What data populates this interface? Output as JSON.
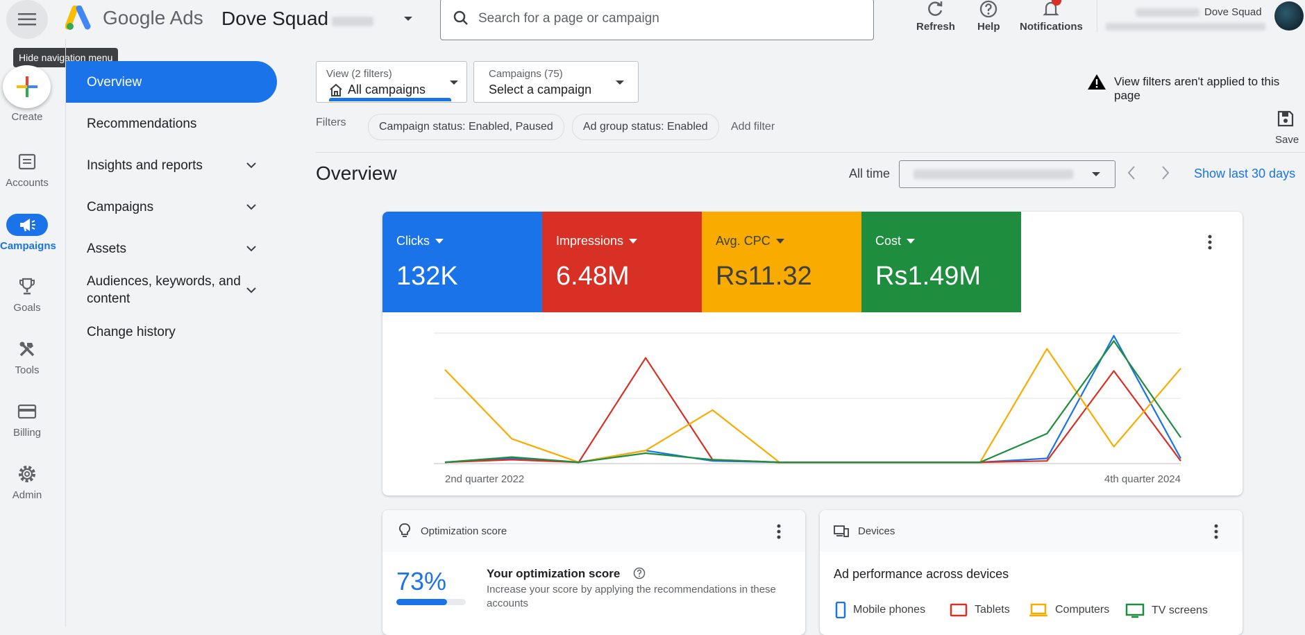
{
  "header": {
    "menu_tooltip": "Hide navigation menu",
    "product_name": "Google Ads",
    "account_name": "Dove Squad",
    "search_placeholder": "Search for a page or campaign",
    "actions": [
      {
        "label": "Refresh",
        "icon": "refresh-icon"
      },
      {
        "label": "Help",
        "icon": "help-icon"
      },
      {
        "label": "Notifications",
        "icon": "bell-icon"
      }
    ],
    "user_account_name": "Dove Squad"
  },
  "rail": {
    "create_label": "Create",
    "items": [
      {
        "label": "Accounts",
        "icon": "accounts-icon"
      },
      {
        "label": "Campaigns",
        "icon": "megaphone-icon",
        "active": true
      },
      {
        "label": "Goals",
        "icon": "trophy-icon"
      },
      {
        "label": "Tools",
        "icon": "tools-icon"
      },
      {
        "label": "Billing",
        "icon": "credit-card-icon"
      },
      {
        "label": "Admin",
        "icon": "gear-icon"
      }
    ]
  },
  "nav": {
    "items": [
      {
        "label": "Overview",
        "active": true
      },
      {
        "label": "Recommendations"
      },
      {
        "label": "Insights and reports",
        "expandable": true
      },
      {
        "label": "Campaigns",
        "expandable": true
      },
      {
        "label": "Assets",
        "expandable": true
      },
      {
        "label": "Audiences, keywords, and content",
        "expandable": true
      },
      {
        "label": "Change history"
      }
    ]
  },
  "filters": {
    "view_sub": "View (2 filters)",
    "view_main": "All campaigns",
    "campaign_sub": "Campaigns (75)",
    "campaign_main": "Select a campaign",
    "warning": "View filters aren't applied to this page",
    "label": "Filters",
    "chips": [
      "Campaign status: Enabled, Paused",
      "Ad group status: Enabled"
    ],
    "add_filter": "Add filter",
    "save_label": "Save"
  },
  "overview": {
    "title": "Overview",
    "date_label": "All time",
    "show_last": "Show last 30 days"
  },
  "metrics": [
    {
      "label": "Clicks",
      "value": "132K",
      "color": "#1a73e8"
    },
    {
      "label": "Impressions",
      "value": "6.48M",
      "color": "#d93025"
    },
    {
      "label": "Avg. CPC",
      "value": "Rs11.32",
      "color": "#f9ab00"
    },
    {
      "label": "Cost",
      "value": "Rs1.49M",
      "color": "#1e8e3e"
    }
  ],
  "chart_data": {
    "type": "line",
    "x_start_label": "2nd quarter 2022",
    "x_end_label": "4th quarter 2024",
    "ylim": [
      0,
      100
    ],
    "grid": true,
    "series": [
      {
        "name": "Clicks",
        "color": "#1a73e8",
        "values": [
          1,
          4,
          1,
          10,
          2,
          1,
          1,
          1,
          1,
          4,
          98,
          4
        ]
      },
      {
        "name": "Impressions",
        "color": "#d93025",
        "values": [
          1,
          3,
          1,
          81,
          3,
          1,
          1,
          1,
          1,
          2,
          71,
          2
        ]
      },
      {
        "name": "Avg. CPC",
        "color": "#f9ab00",
        "values": [
          72,
          19,
          1,
          10,
          41,
          1,
          1,
          1,
          1,
          88,
          13,
          73
        ]
      },
      {
        "name": "Cost",
        "color": "#1e8e3e",
        "values": [
          1,
          5,
          1,
          8,
          3,
          1,
          1,
          1,
          1,
          23,
          94,
          20
        ]
      }
    ]
  },
  "optimization": {
    "title": "Optimization score",
    "score": "73%",
    "score_fraction": 0.73,
    "heading": "Your optimization score",
    "description": "Increase your score by applying the recommendations in these accounts"
  },
  "devices": {
    "title": "Devices",
    "heading": "Ad performance across devices",
    "legend": [
      {
        "label": "Mobile phones",
        "color": "#1a73e8",
        "icon": "phone-icon"
      },
      {
        "label": "Tablets",
        "color": "#d93025",
        "icon": "tablet-icon"
      },
      {
        "label": "Computers",
        "color": "#f9ab00",
        "icon": "laptop-icon"
      },
      {
        "label": "TV screens",
        "color": "#1e8e3e",
        "icon": "tv-icon"
      }
    ]
  }
}
